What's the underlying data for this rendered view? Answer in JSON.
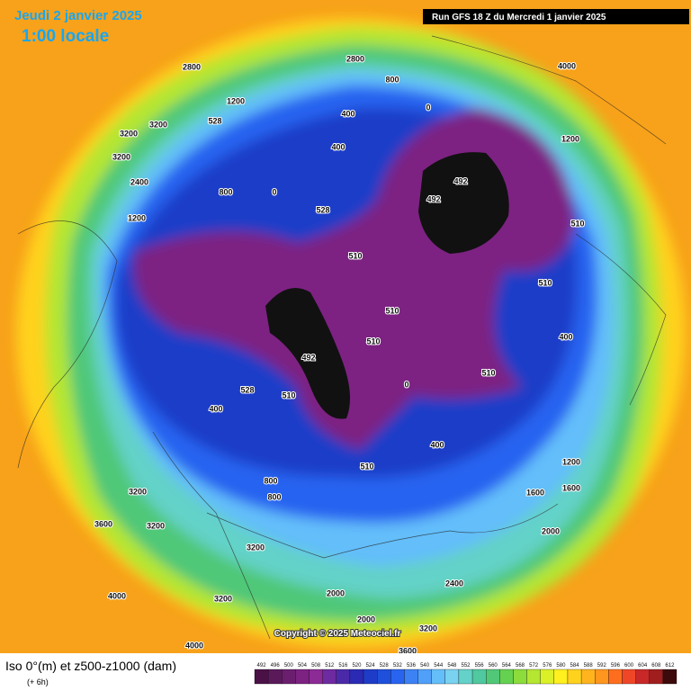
{
  "header": {
    "date": "Jeudi 2 janvier 2025",
    "time": "1:00 locale",
    "run": "Run GFS 18 Z du Mercredi 1 janvier 2025"
  },
  "copyright": "Copyright © 2025 Meteociel.fr",
  "footer": {
    "title": "Iso 0°(m) et z500-z1000 (dam)",
    "step": "(+ 6h)"
  },
  "legend": {
    "values": [
      492,
      496,
      500,
      504,
      508,
      512,
      516,
      520,
      524,
      528,
      532,
      536,
      540,
      544,
      548,
      552,
      556,
      560,
      564,
      568,
      572,
      576,
      580,
      584,
      588,
      592,
      596,
      600,
      604,
      608,
      612
    ],
    "colors": [
      "#4b1146",
      "#5a1a5a",
      "#6b1e6e",
      "#7d2282",
      "#8c2a96",
      "#6e2aa0",
      "#4a2aa8",
      "#2a2ab4",
      "#1e3cc8",
      "#1e50dc",
      "#2864f0",
      "#3c82f5",
      "#50a0fa",
      "#64befa",
      "#78d2f0",
      "#64d2c8",
      "#50c8a0",
      "#50c878",
      "#64d250",
      "#8cdc3c",
      "#b4e632",
      "#dcf028",
      "#fff01e",
      "#ffd21e",
      "#ffb41e",
      "#ff961e",
      "#ff6e1e",
      "#f04628",
      "#c82828",
      "#a01e1e",
      "#3c0a0a"
    ]
  },
  "contour_labels": [
    2800,
    2800,
    1200,
    3200,
    3200,
    3200,
    2400,
    800,
    800,
    800,
    800,
    1200,
    400,
    400,
    400,
    400,
    400,
    0,
    0,
    0,
    528,
    528,
    528,
    510,
    510,
    510,
    510,
    510,
    510,
    510,
    510,
    492,
    492,
    492,
    1600,
    1600,
    2000,
    2000,
    2000,
    3200,
    3200,
    3200,
    3200,
    3200,
    3600,
    3600,
    4000,
    4000,
    4000,
    1200,
    1200,
    2400
  ]
}
